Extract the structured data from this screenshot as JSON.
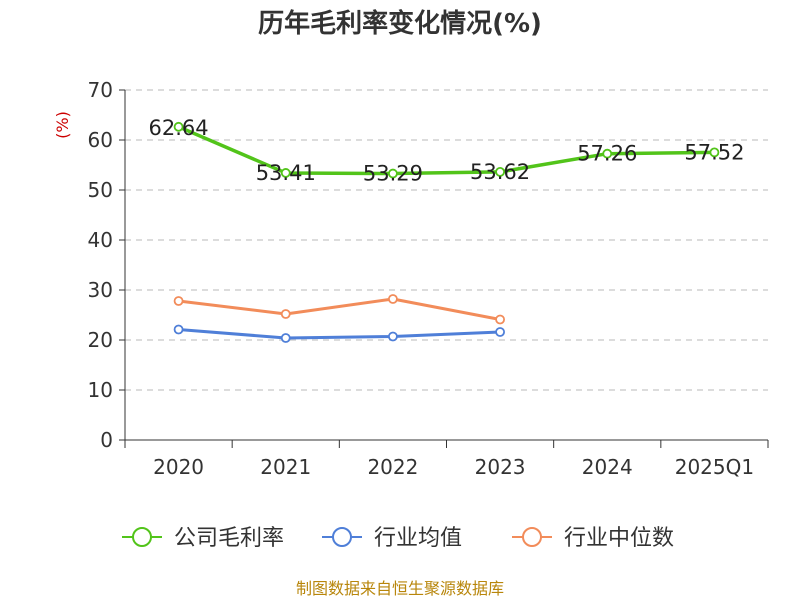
{
  "chart_data": {
    "type": "line",
    "title": "历年毛利率变化情况(%)",
    "ylabel": "(%)",
    "xlabel": "",
    "ylim": [
      0,
      70
    ],
    "yticks": [
      0,
      10,
      20,
      30,
      40,
      50,
      60,
      70
    ],
    "categories": [
      "2020",
      "2021",
      "2022",
      "2023",
      "2024",
      "2025Q1"
    ],
    "grid": true,
    "legend_position": "bottom",
    "series": [
      {
        "name": "公司毛利率",
        "color": "#52c41a",
        "values": [
          62.64,
          53.41,
          53.29,
          53.62,
          57.26,
          57.52
        ],
        "labels": [
          "62.64",
          "53.41",
          "53.29",
          "53.62",
          "57.26",
          "57.52"
        ]
      },
      {
        "name": "行业均值",
        "color": "#4f7fd8",
        "values": [
          22.1,
          20.4,
          20.7,
          21.6,
          null,
          null
        ]
      },
      {
        "name": "行业中位数",
        "color": "#f28c5a",
        "values": [
          27.8,
          25.2,
          28.2,
          24.1,
          null,
          null
        ]
      }
    ],
    "source": "制图数据来自恒生聚源数据库"
  }
}
